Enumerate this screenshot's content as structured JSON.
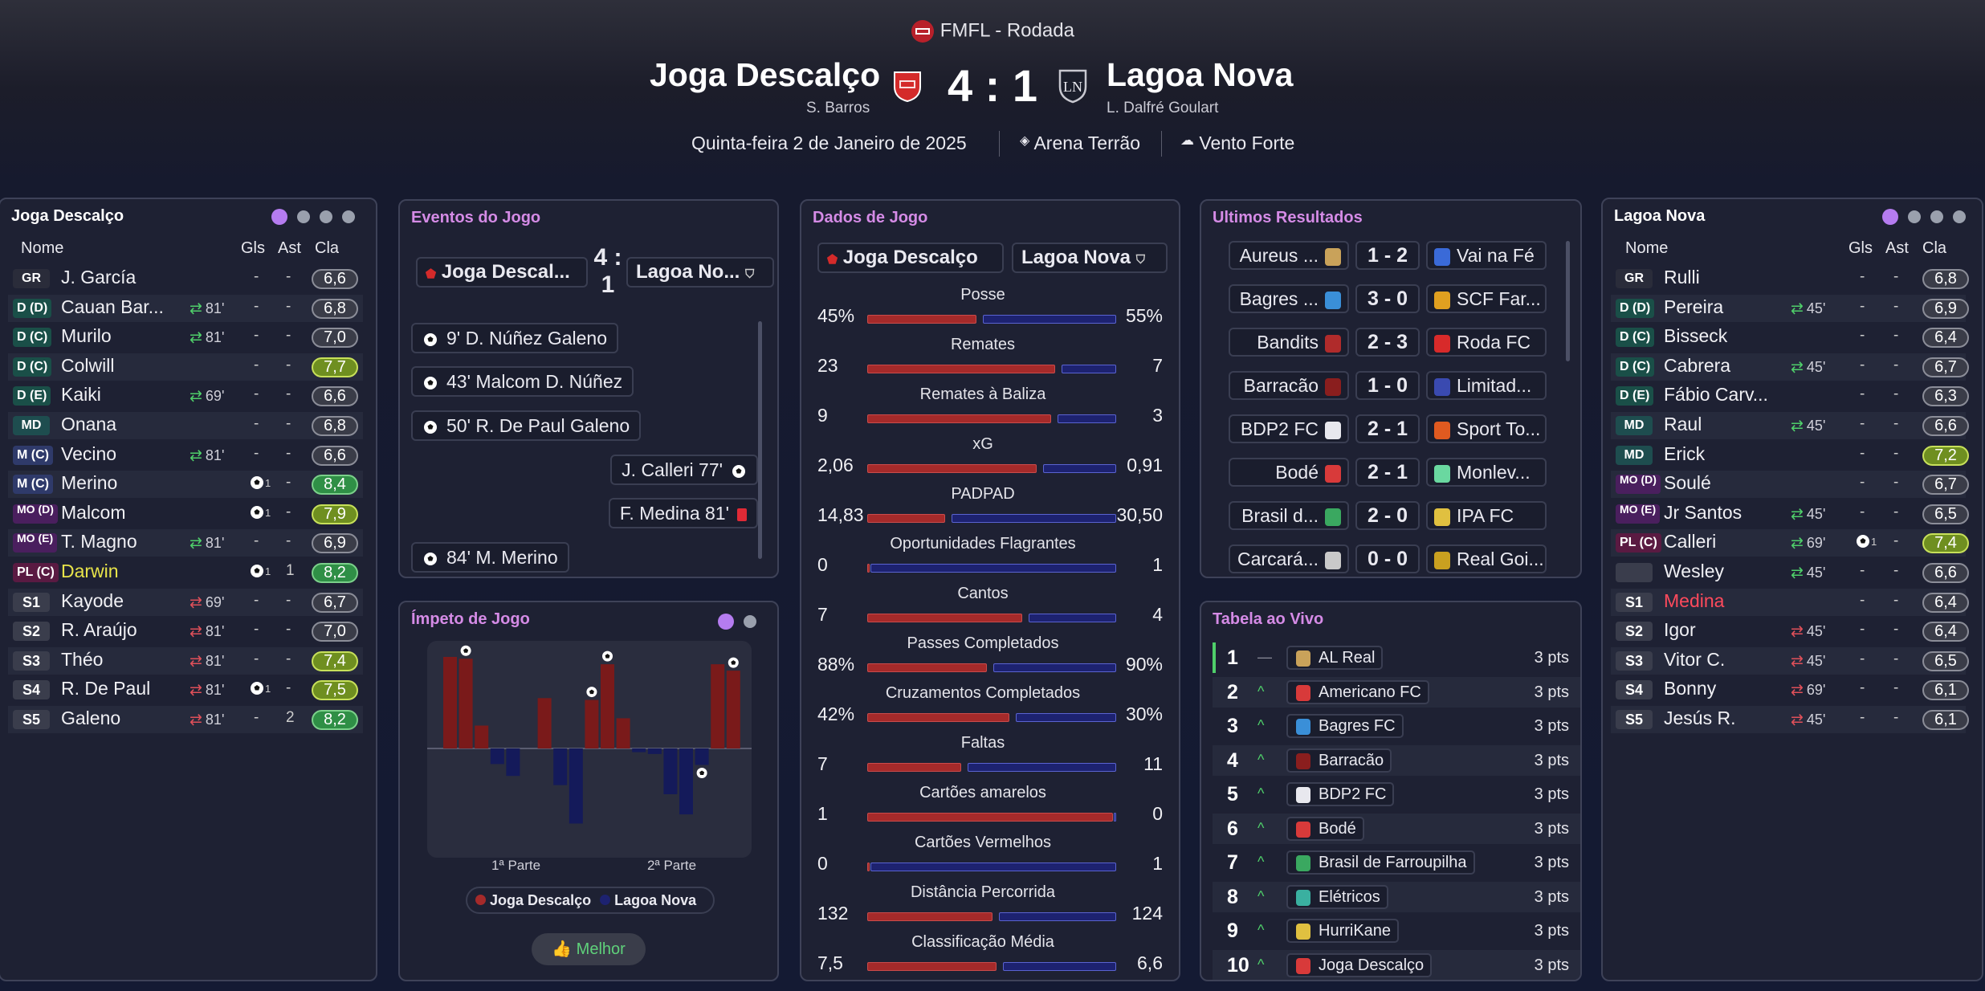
{
  "header": {
    "competition": "FMFL - Rodada",
    "home_team": "Joga Descalço",
    "home_manager": "S. Barros",
    "away_team": "Lagoa Nova",
    "away_manager": "L. Dalfré Goulart",
    "score": "4 : 1",
    "date": "Quinta-feira 2 de Janeiro de 2025",
    "stadium": "Arena Terrão",
    "weather": "Vento Forte"
  },
  "colors": {
    "home": "#a52a2a",
    "away": "#1d2270",
    "accent": "#d58be6",
    "rating_green": "#2f8f46",
    "rating_lime": "#6f8f20"
  },
  "columns": {
    "name": "Nome",
    "goals": "Gls",
    "assists": "Ast",
    "rating": "Cla"
  },
  "home_panel": {
    "title": "Joga Descalço",
    "players": [
      {
        "pos": "GR",
        "name": "J. García",
        "sub": "",
        "g": "-",
        "a": "-",
        "r": "6,6"
      },
      {
        "pos": "D (D)",
        "name": "Cauan Bar...",
        "sub": "81'",
        "g": "-",
        "a": "-",
        "r": "6,8"
      },
      {
        "pos": "D (C)",
        "name": "Murilo",
        "sub": "81'",
        "g": "-",
        "a": "-",
        "r": "7,0"
      },
      {
        "pos": "D (C)",
        "name": "Colwill",
        "sub": "",
        "g": "-",
        "a": "-",
        "r": "7,7"
      },
      {
        "pos": "D (E)",
        "name": "Kaiki",
        "sub": "69'",
        "g": "-",
        "a": "-",
        "r": "6,6"
      },
      {
        "pos": "MD",
        "name": "Onana",
        "sub": "",
        "g": "-",
        "a": "-",
        "r": "6,8"
      },
      {
        "pos": "M (C)",
        "name": "Vecino",
        "sub": "81'",
        "g": "-",
        "a": "-",
        "r": "6,6"
      },
      {
        "pos": "M (C)",
        "name": "Merino",
        "sub": "",
        "g": "1",
        "a": "-",
        "r": "8,4"
      },
      {
        "pos": "MO (D)",
        "name": "Malcom",
        "sub": "",
        "g": "1",
        "a": "-",
        "r": "7,9"
      },
      {
        "pos": "MO (E)",
        "name": "T. Magno",
        "sub": "81'",
        "g": "-",
        "a": "-",
        "r": "6,9"
      },
      {
        "pos": "PL (C)",
        "name": "Darwin",
        "sub": "",
        "g": "1",
        "a": "1",
        "r": "8,2"
      },
      {
        "pos": "S1",
        "name": "Kayode",
        "sub": "69'",
        "g": "-",
        "a": "-",
        "r": "6,7"
      },
      {
        "pos": "S2",
        "name": "R. Araújo",
        "sub": "81'",
        "g": "-",
        "a": "-",
        "r": "7,0"
      },
      {
        "pos": "S3",
        "name": "Théo",
        "sub": "81'",
        "g": "-",
        "a": "-",
        "r": "7,4"
      },
      {
        "pos": "S4",
        "name": "R. De Paul",
        "sub": "81'",
        "g": "1",
        "a": "-",
        "r": "7,5"
      },
      {
        "pos": "S5",
        "name": "Galeno",
        "sub": "81'",
        "g": "-",
        "a": "2",
        "r": "8,2"
      }
    ]
  },
  "away_panel": {
    "title": "Lagoa Nova",
    "players": [
      {
        "pos": "GR",
        "name": "Rulli",
        "sub": "",
        "g": "-",
        "a": "-",
        "r": "6,8"
      },
      {
        "pos": "D (D)",
        "name": "Pereira",
        "sub": "45'",
        "g": "-",
        "a": "-",
        "r": "6,9"
      },
      {
        "pos": "D (C)",
        "name": "Bisseck",
        "sub": "",
        "g": "-",
        "a": "-",
        "r": "6,4"
      },
      {
        "pos": "D (C)",
        "name": "Cabrera",
        "sub": "45'",
        "g": "-",
        "a": "-",
        "r": "6,7"
      },
      {
        "pos": "D (E)",
        "name": "Fábio Carv...",
        "sub": "",
        "g": "-",
        "a": "-",
        "r": "6,3"
      },
      {
        "pos": "MD",
        "name": "Raul",
        "sub": "45'",
        "g": "-",
        "a": "-",
        "r": "6,6"
      },
      {
        "pos": "MD",
        "name": "Erick",
        "sub": "",
        "g": "-",
        "a": "-",
        "r": "7,2"
      },
      {
        "pos": "MO (D)",
        "name": "Soulé",
        "sub": "",
        "g": "-",
        "a": "-",
        "r": "6,7"
      },
      {
        "pos": "MO (E)",
        "name": "Jr Santos",
        "sub": "45'",
        "g": "-",
        "a": "-",
        "r": "6,5"
      },
      {
        "pos": "PL (C)",
        "name": "Calleri",
        "sub": "69'",
        "g": "1",
        "a": "-",
        "r": "7,4"
      },
      {
        "pos": "",
        "name": "Wesley",
        "sub": "45'",
        "g": "-",
        "a": "-",
        "r": "6,6"
      },
      {
        "pos": "S1",
        "name": "Medina",
        "sub": "",
        "g": "-",
        "a": "-",
        "r": "6,4"
      },
      {
        "pos": "S2",
        "name": "Igor",
        "sub": "45'",
        "g": "-",
        "a": "-",
        "r": "6,4"
      },
      {
        "pos": "S3",
        "name": "Vitor C.",
        "sub": "45'",
        "g": "-",
        "a": "-",
        "r": "6,5"
      },
      {
        "pos": "S4",
        "name": "Bonny",
        "sub": "69'",
        "g": "-",
        "a": "-",
        "r": "6,1"
      },
      {
        "pos": "S5",
        "name": "Jesús R.",
        "sub": "45'",
        "g": "-",
        "a": "-",
        "r": "6,1"
      }
    ]
  },
  "events": {
    "title": "Eventos do Jogo",
    "home_tab": "Joga Descal...",
    "away_tab": "Lagoa No...",
    "score_top": "4 :",
    "score_bottom": "1",
    "items": [
      {
        "side": "home",
        "type": "goal",
        "text": "9' D. Núñez Galeno"
      },
      {
        "side": "home",
        "type": "goal",
        "text": "43' Malcom D. Núñez"
      },
      {
        "side": "home",
        "type": "goal",
        "text": "50' R. De Paul Galeno"
      },
      {
        "side": "away",
        "type": "goal",
        "text": "J. Calleri 77'"
      },
      {
        "side": "away",
        "type": "red",
        "text": "F. Medina 81'"
      },
      {
        "side": "home",
        "type": "goal",
        "text": "84' M. Merino"
      }
    ]
  },
  "momentum": {
    "title": "Ímpeto de Jogo",
    "half1": "1ª Parte",
    "half2": "2ª Parte",
    "legend_home": "Joga Descalço",
    "legend_away": "Lagoa Nova",
    "button": "Melhor"
  },
  "chart_data": {
    "type": "bar",
    "title": "Ímpeto de Jogo",
    "series": [
      {
        "name": "Joga Descalço",
        "values": [
          1.0,
          0.98,
          0.25,
          0,
          0,
          0,
          0.55,
          0,
          0,
          0.53,
          0.92,
          0.33,
          0,
          0,
          0,
          0,
          0,
          0.92,
          0.85
        ]
      },
      {
        "name": "Lagoa Nova",
        "values": [
          0,
          0,
          0,
          0.17,
          0.3,
          0,
          0,
          0.4,
          0.82,
          0,
          0,
          0,
          0.04,
          0.06,
          0.5,
          0.72,
          0.18,
          0,
          0
        ]
      }
    ],
    "goal_markers": [
      1,
      9,
      10,
      16,
      18
    ]
  },
  "stats": {
    "title": "Dados de Jogo",
    "home_tab": "Joga Descalço",
    "away_tab": "Lagoa Nova",
    "rows": [
      {
        "label": "Posse",
        "home": "45%",
        "away": "55%",
        "hv": 45,
        "av": 55
      },
      {
        "label": "Remates",
        "home": "23",
        "away": "7",
        "hv": 23,
        "av": 7
      },
      {
        "label": "Remates à Baliza",
        "home": "9",
        "away": "3",
        "hv": 9,
        "av": 3
      },
      {
        "label": "xG",
        "home": "2,06",
        "away": "0,91",
        "hv": 2.06,
        "av": 0.91
      },
      {
        "label": "PADPAD",
        "home": "14,83",
        "away": "30,50",
        "hv": 14.83,
        "av": 30.5
      },
      {
        "label": "Oportunidades Flagrantes",
        "home": "0",
        "away": "1",
        "hv": 0,
        "av": 1
      },
      {
        "label": "Cantos",
        "home": "7",
        "away": "4",
        "hv": 7,
        "av": 4
      },
      {
        "label": "Passes Completados",
        "home": "88%",
        "away": "90%",
        "hv": 88,
        "av": 90
      },
      {
        "label": "Cruzamentos Completados",
        "home": "42%",
        "away": "30%",
        "hv": 42,
        "av": 30
      },
      {
        "label": "Faltas",
        "home": "7",
        "away": "11",
        "hv": 7,
        "av": 11
      },
      {
        "label": "Cartões amarelos",
        "home": "1",
        "away": "0",
        "hv": 1,
        "av": 0
      },
      {
        "label": "Cartões Vermelhos",
        "home": "0",
        "away": "1",
        "hv": 0,
        "av": 1
      },
      {
        "label": "Distância Percorrida",
        "home": "132",
        "away": "124",
        "hv": 132,
        "av": 124
      },
      {
        "label": "Classificação Média",
        "home": "7,5",
        "away": "6,6",
        "hv": 7.5,
        "av": 6.6
      }
    ]
  },
  "results": {
    "title": "Ultimos Resultados",
    "items": [
      {
        "home": "Aureus ...",
        "score": "1 - 2",
        "away": "Vai na Fé"
      },
      {
        "home": "Bagres ...",
        "score": "3 - 0",
        "away": "SCF Far..."
      },
      {
        "home": "Bandits",
        "score": "2 - 3",
        "away": "Roda FC"
      },
      {
        "home": "Barracão",
        "score": "1 - 0",
        "away": "Limitad..."
      },
      {
        "home": "BDP2 FC",
        "score": "2 - 1",
        "away": "Sport To..."
      },
      {
        "home": "Bodé",
        "score": "2 - 1",
        "away": "Monlev..."
      },
      {
        "home": "Brasil d...",
        "score": "2 - 0",
        "away": "IPA FC"
      },
      {
        "home": "Carcará...",
        "score": "0 - 0",
        "away": "Real Goi..."
      }
    ]
  },
  "table": {
    "title": "Tabela ao Vivo",
    "rows": [
      {
        "pos": "1",
        "move": "—",
        "team": "AL Real",
        "pts": "3 pts"
      },
      {
        "pos": "2",
        "move": "^",
        "team": "Americano FC",
        "pts": "3 pts"
      },
      {
        "pos": "3",
        "move": "^",
        "team": "Bagres FC",
        "pts": "3 pts"
      },
      {
        "pos": "4",
        "move": "^",
        "team": "Barracão",
        "pts": "3 pts"
      },
      {
        "pos": "5",
        "move": "^",
        "team": "BDP2 FC",
        "pts": "3 pts"
      },
      {
        "pos": "6",
        "move": "^",
        "team": "Bodé",
        "pts": "3 pts"
      },
      {
        "pos": "7",
        "move": "^",
        "team": "Brasil de Farroupilha",
        "pts": "3 pts"
      },
      {
        "pos": "8",
        "move": "^",
        "team": "Elétricos",
        "pts": "3 pts"
      },
      {
        "pos": "9",
        "move": "^",
        "team": "HurriKane",
        "pts": "3 pts"
      },
      {
        "pos": "10",
        "move": "^",
        "team": "Joga Descalço",
        "pts": "3 pts"
      }
    ]
  }
}
